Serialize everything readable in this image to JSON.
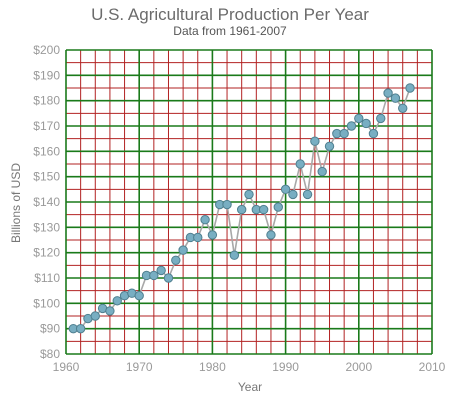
{
  "chart_data": {
    "type": "line",
    "title": "U.S. Agricultural Production Per Year",
    "subtitle": "Data from 1961-2007",
    "xlabel": "Year",
    "ylabel": "Billions of USD",
    "xlim": [
      1960,
      2010
    ],
    "ylim": [
      80,
      200
    ],
    "x_ticks": [
      "1960",
      "1970",
      "1980",
      "1990",
      "2000",
      "2010"
    ],
    "y_ticks": [
      "$80",
      "$90",
      "$100",
      "$110",
      "$120",
      "$130",
      "$140",
      "$150",
      "$160",
      "$170",
      "$180",
      "$190",
      "$200"
    ],
    "grid": true,
    "minor_grid_color": "#b22222",
    "major_grid_color": "#1a7a1a",
    "line_color": "#a8a8a8",
    "marker_color": "#78aec2",
    "series": [
      {
        "x": [
          1961,
          1962,
          1963,
          1964,
          1965,
          1966,
          1967,
          1968,
          1969,
          1970,
          1971,
          1972,
          1973,
          1974,
          1975,
          1976,
          1977,
          1978,
          1979,
          1980,
          1981,
          1982,
          1983,
          1984,
          1985,
          1986,
          1987,
          1988,
          1989,
          1990,
          1991,
          1992,
          1993,
          1994,
          1995,
          1996,
          1997,
          1998,
          1999,
          2000,
          2001,
          2002,
          2003,
          2004,
          2005,
          2006,
          2007
        ],
        "values": [
          90,
          90,
          94,
          95,
          98,
          97,
          101,
          103,
          104,
          103,
          111,
          111,
          113,
          110,
          117,
          121,
          126,
          126,
          133,
          127,
          139,
          139,
          119,
          137,
          143,
          137,
          137,
          127,
          138,
          145,
          143,
          155,
          143,
          164,
          152,
          162,
          167,
          167,
          170,
          173,
          171,
          167,
          173,
          183,
          181,
          177,
          185
        ]
      }
    ]
  }
}
